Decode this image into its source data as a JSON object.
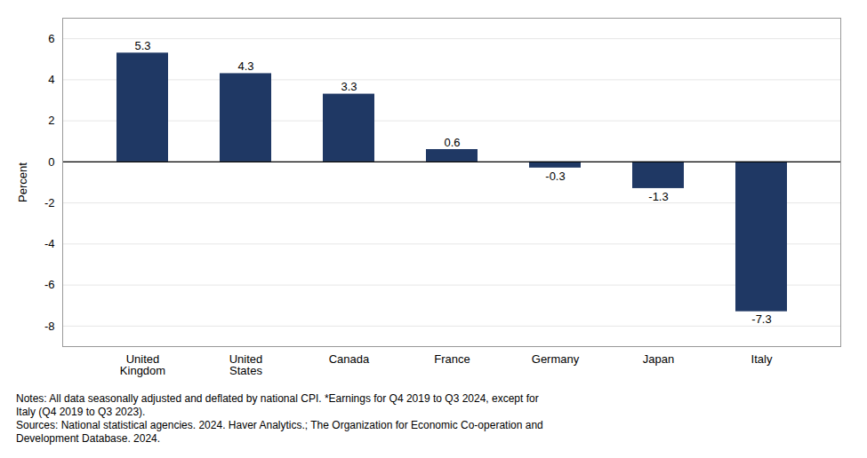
{
  "chart_data": {
    "type": "bar",
    "categories": [
      "United\nKingdom",
      "United\nStates",
      "Canada",
      "France",
      "Germany",
      "Japan",
      "Italy"
    ],
    "values": [
      5.3,
      4.3,
      3.3,
      0.6,
      -0.3,
      -1.3,
      -7.3
    ],
    "color": "#1F3864",
    "ylabel": "Percent",
    "ylim": [
      -9,
      7
    ],
    "yticks": [
      -8,
      -6,
      -4,
      -2,
      0,
      2,
      4,
      6
    ],
    "grid": true,
    "data_labels": true,
    "annotations": [
      "Notes: All data seasonally adjusted and deflated by national CPI. *Earnings for Q4 2019 to Q3 2024, except for",
      "Italy (Q4 2019 to Q3 2023).",
      "Sources: National statistical agencies. 2024. Haver Analytics.; The Organization for Economic Co-operation and",
      "Development Database. 2024."
    ]
  }
}
